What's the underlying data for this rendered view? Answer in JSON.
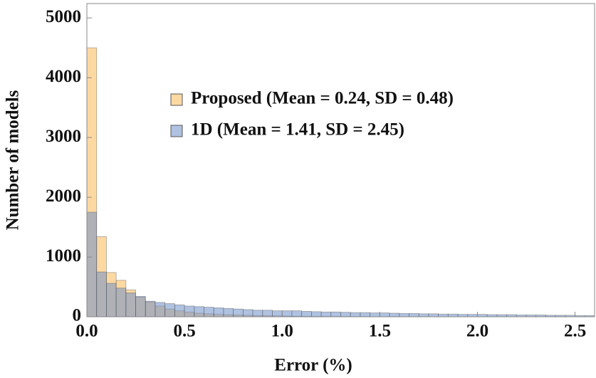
{
  "chart_data": {
    "type": "histogram",
    "x_label": "Error (%)",
    "y_label": "Number of models",
    "bins": [
      0,
      0.05,
      0.1,
      0.15,
      0.2,
      0.25,
      0.3,
      0.35,
      0.4,
      0.45,
      0.5,
      0.55,
      0.6,
      0.65,
      0.7,
      0.75,
      0.8,
      0.85,
      0.9,
      0.95,
      1.0,
      1.05,
      1.1,
      1.15,
      1.2,
      1.25,
      1.3,
      1.35,
      1.4,
      1.45,
      1.5,
      1.55,
      1.6,
      1.65,
      1.7,
      1.75,
      1.8,
      1.85,
      1.9,
      1.95,
      2.0,
      2.05,
      2.1,
      2.15,
      2.2,
      2.25,
      2.3,
      2.35,
      2.4,
      2.45,
      2.5,
      2.55,
      2.6
    ],
    "series": [
      {
        "name": "Proposed (Mean = 0.24, SD = 0.48)",
        "color": "#fbb955",
        "values": [
          4500,
          1340,
          740,
          610,
          450,
          330,
          250,
          180,
          130,
          100,
          80,
          60,
          50,
          40,
          35,
          30,
          25,
          20,
          18,
          15,
          12,
          10,
          8,
          7,
          6,
          5,
          5,
          4,
          4,
          3,
          3,
          3,
          2,
          2,
          2,
          2,
          1,
          1,
          1,
          1,
          1,
          1,
          1,
          1,
          0,
          0,
          0,
          0,
          0,
          0,
          0,
          0
        ]
      },
      {
        "name": "1D (Mean = 1.41, SD = 2.45)",
        "color": "#6f90c8",
        "values": [
          1750,
          750,
          560,
          480,
          400,
          340,
          260,
          240,
          220,
          200,
          180,
          170,
          160,
          150,
          140,
          130,
          120,
          110,
          110,
          100,
          100,
          100,
          90,
          85,
          80,
          80,
          75,
          70,
          70,
          65,
          65,
          60,
          55,
          55,
          50,
          50,
          45,
          45,
          40,
          40,
          40,
          35,
          35,
          35,
          30,
          30,
          30,
          25,
          25,
          25,
          20,
          20
        ]
      }
    ],
    "xlim": [
      0,
      2.6
    ],
    "ylim": [
      0,
      5240
    ],
    "xticks": [
      {
        "value": 0,
        "label": "0.0"
      },
      0.5,
      {
        "value": 1,
        "label": "1.0"
      },
      1.5,
      {
        "value": 2,
        "label": "2.0"
      },
      2.5
    ],
    "yticks": [
      0,
      1000,
      2000,
      3000,
      4000,
      5000
    ],
    "legend": "center"
  }
}
